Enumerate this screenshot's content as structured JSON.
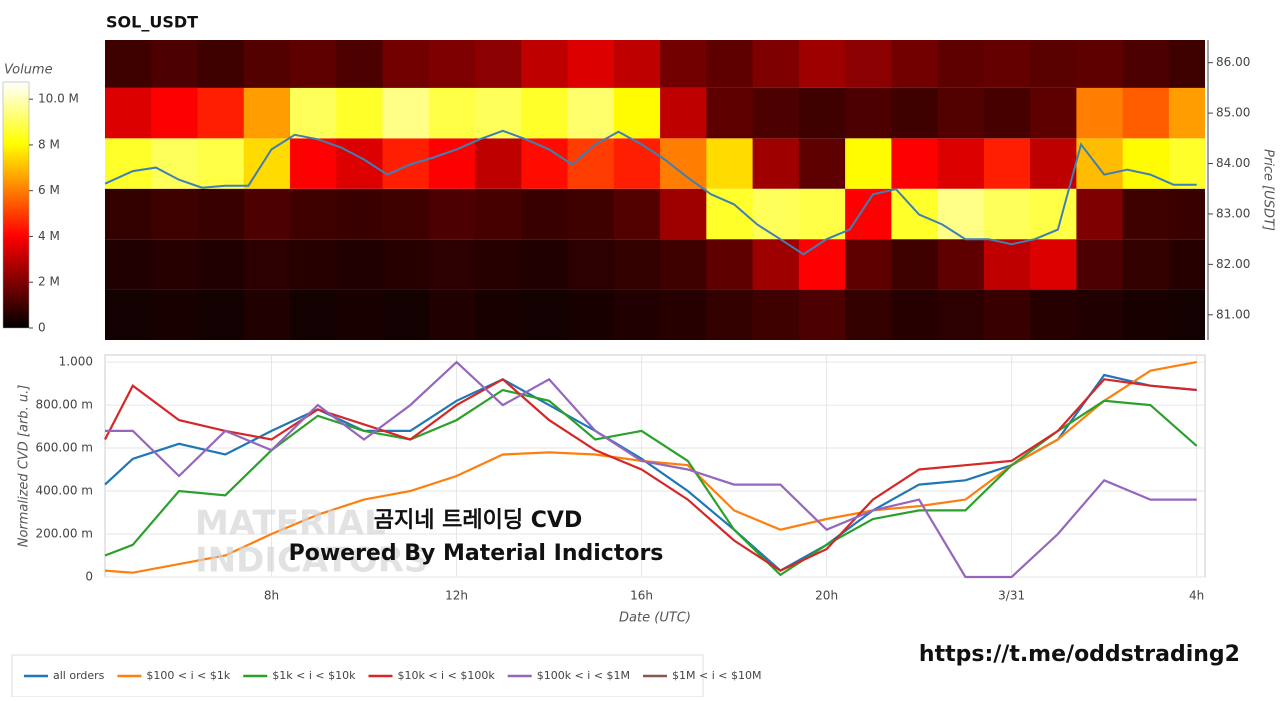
{
  "url": "https://t.me/oddstrading2",
  "overlay": {
    "line1": "곰지네 트레이딩 CVD",
    "line2": "Powered By Material Indictors",
    "watermark": [
      "MATERIAL",
      "INDICATORS"
    ]
  },
  "chart_data": [
    {
      "type": "heatmap",
      "title": "SOL_USDT",
      "ylabel": "Price [USDT]",
      "colorscale": "hot",
      "xlim": [
        4.4,
        28.18
      ],
      "ylim": [
        80.5,
        86.45
      ],
      "yticks": [
        {
          "value": 81,
          "label": "81.00"
        },
        {
          "value": 82,
          "label": "82.00"
        },
        {
          "value": 83,
          "label": "83.00"
        },
        {
          "value": 84,
          "label": "84.00"
        },
        {
          "value": 85,
          "label": "85.00"
        },
        {
          "value": 86,
          "label": "86.00"
        }
      ],
      "x": [
        4.4,
        5.4,
        6.4,
        7.4,
        8.4,
        9.4,
        10.4,
        11.4,
        12.4,
        13.4,
        14.4,
        15.4,
        16.4,
        17.4,
        18.4,
        19.4,
        20.4,
        21.4,
        22.4,
        23.4,
        24.4,
        25.4,
        26.4,
        27.4
      ],
      "y_bins": [
        80.5,
        81.5,
        82.5,
        83.5,
        84.5,
        85.5,
        86.5
      ],
      "z": [
        [
          0.3,
          0.4,
          0.3,
          0.5,
          0.3,
          0.4,
          0.3,
          0.5,
          0.4,
          0.3,
          0.4,
          0.5,
          0.6,
          0.8,
          1.0,
          1.2,
          0.8,
          0.6,
          0.7,
          0.9,
          0.6,
          0.5,
          0.4,
          0.3
        ],
        [
          0.5,
          0.6,
          0.5,
          0.7,
          0.6,
          0.5,
          0.6,
          0.7,
          0.6,
          0.5,
          0.7,
          0.8,
          1.0,
          1.5,
          2.5,
          4.0,
          1.5,
          1.0,
          1.5,
          3.0,
          3.5,
          1.2,
          0.8,
          0.6
        ],
        [
          0.8,
          1.0,
          0.9,
          1.2,
          1.0,
          0.9,
          1.0,
          1.2,
          1.1,
          0.9,
          1.0,
          1.3,
          2.5,
          8.5,
          9.0,
          8.8,
          4.0,
          8.5,
          9.5,
          9.0,
          8.8,
          2.0,
          1.0,
          0.9
        ],
        [
          8.5,
          9.0,
          8.8,
          7.5,
          4.0,
          3.5,
          4.5,
          4.0,
          3.0,
          4.2,
          5.0,
          4.5,
          6.0,
          7.5,
          2.5,
          1.5,
          8.0,
          4.0,
          3.5,
          4.5,
          3.0,
          7.0,
          8.0,
          8.5
        ],
        [
          3.5,
          4.0,
          4.5,
          6.5,
          9.0,
          8.5,
          9.5,
          8.8,
          9.0,
          8.5,
          9.2,
          8.0,
          3.0,
          1.5,
          1.2,
          1.0,
          1.2,
          1.0,
          1.3,
          1.1,
          1.5,
          6.0,
          5.5,
          6.5
        ],
        [
          1.0,
          1.2,
          1.0,
          1.3,
          1.5,
          1.2,
          1.8,
          2.0,
          2.2,
          3.0,
          3.5,
          3.0,
          1.8,
          1.5,
          2.0,
          2.5,
          2.2,
          1.8,
          1.5,
          1.6,
          1.4,
          1.5,
          1.2,
          1.0
        ]
      ],
      "colorbar": {
        "title": "Volume",
        "zlim": [
          0,
          10.75
        ],
        "ticks": [
          0,
          {
            "value": 2,
            "label": "2 M"
          },
          {
            "value": 4,
            "label": "4 M"
          },
          {
            "value": 6,
            "label": "6 M"
          },
          {
            "value": 8,
            "label": "8 M"
          },
          {
            "value": 10,
            "label": "10.0 M"
          }
        ]
      },
      "line": {
        "color": "#3f7fb5",
        "x": [
          4.4,
          5,
          5.5,
          6,
          6.5,
          7,
          7.5,
          8,
          8.5,
          9,
          9.5,
          10,
          10.5,
          11,
          11.5,
          12,
          12.5,
          13,
          13.5,
          14,
          14.5,
          15,
          15.5,
          16,
          16.5,
          17,
          17.5,
          18,
          18.5,
          19,
          19.5,
          20,
          20.5,
          21,
          21.5,
          22,
          22.5,
          23,
          23.5,
          24,
          24.5,
          25,
          25.5,
          26,
          26.5,
          27,
          27.5,
          28
        ],
        "values": [
          83.6,
          83.85,
          83.92,
          83.68,
          83.52,
          83.56,
          83.56,
          84.28,
          84.57,
          84.48,
          84.32,
          84.08,
          83.78,
          83.98,
          84.12,
          84.28,
          84.48,
          84.65,
          84.48,
          84.28,
          83.98,
          84.38,
          84.63,
          84.38,
          84.08,
          83.72,
          83.39,
          83.19,
          82.79,
          82.5,
          82.2,
          82.5,
          82.69,
          83.39,
          83.49,
          82.99,
          82.79,
          82.5,
          82.5,
          82.4,
          82.5,
          82.69,
          84.38,
          83.78,
          83.88,
          83.78,
          83.58,
          83.58
        ]
      }
    },
    {
      "type": "line",
      "xlabel": "Date (UTC)",
      "ylabel": "Normalized CVD [arb. u.]",
      "grid": true,
      "legend": "bottom-left",
      "xlim": [
        4.4,
        28.18
      ],
      "ylim": [
        0,
        1.033
      ],
      "xticks": [
        {
          "value": 8,
          "label": "8h"
        },
        {
          "value": 12,
          "label": "12h"
        },
        {
          "value": 16,
          "label": "16h"
        },
        {
          "value": 20,
          "label": "20h"
        },
        {
          "value": 24,
          "label": "3/31"
        },
        {
          "value": 28,
          "label": "4h"
        }
      ],
      "yticks": [
        0,
        {
          "value": 0.2,
          "label": "200.00 m"
        },
        {
          "value": 0.4,
          "label": "400.00 m"
        },
        {
          "value": 0.6,
          "label": "600.00 m"
        },
        {
          "value": 0.8,
          "label": "800.00 m"
        },
        {
          "value": 1,
          "label": "1.000"
        }
      ],
      "x": [
        4.4,
        5,
        6,
        7,
        8,
        9,
        10,
        11,
        12,
        13,
        14,
        15,
        16,
        17,
        18,
        19,
        20,
        21,
        22,
        23,
        24,
        25,
        26,
        27,
        28
      ],
      "series": [
        {
          "name": "all orders",
          "color": "#1f77b4",
          "values": [
            0.43,
            0.55,
            0.62,
            0.57,
            0.68,
            0.78,
            0.68,
            0.68,
            0.82,
            0.92,
            0.8,
            0.68,
            0.55,
            0.4,
            0.22,
            0.03,
            0.15,
            0.31,
            0.43,
            0.45,
            0.52,
            0.64,
            0.94,
            0.89,
            0.87
          ]
        },
        {
          "name": "$100 < i < $1k",
          "color": "#ff7f0e",
          "values": [
            0.03,
            0.02,
            0.06,
            0.1,
            0.2,
            0.29,
            0.36,
            0.4,
            0.47,
            0.57,
            0.58,
            0.57,
            0.54,
            0.52,
            0.31,
            0.22,
            0.27,
            0.31,
            0.33,
            0.36,
            0.52,
            0.64,
            0.82,
            0.96,
            1.0
          ]
        },
        {
          "name": "$1k < i < $10k",
          "color": "#2ca02c",
          "values": [
            0.1,
            0.15,
            0.4,
            0.38,
            0.59,
            0.75,
            0.68,
            0.64,
            0.73,
            0.87,
            0.82,
            0.64,
            0.68,
            0.54,
            0.22,
            0.01,
            0.15,
            0.27,
            0.31,
            0.31,
            0.52,
            0.68,
            0.82,
            0.8,
            0.61
          ]
        },
        {
          "name": "$10k < i < $100k",
          "color": "#d62728",
          "values": [
            0.64,
            0.89,
            0.73,
            0.68,
            0.64,
            0.78,
            0.71,
            0.64,
            0.8,
            0.92,
            0.73,
            0.59,
            0.5,
            0.36,
            0.17,
            0.03,
            0.13,
            0.36,
            0.5,
            0.52,
            0.54,
            0.68,
            0.92,
            0.89,
            0.87
          ]
        },
        {
          "name": "$100k < i < $1M",
          "color": "#9467bd",
          "values": [
            0.68,
            0.68,
            0.47,
            0.68,
            0.59,
            0.8,
            0.64,
            0.8,
            1.0,
            0.8,
            0.92,
            0.68,
            0.54,
            0.5,
            0.43,
            0.43,
            0.22,
            0.31,
            0.36,
            0,
            0,
            0.2,
            0.45,
            0.36,
            0.36
          ]
        },
        {
          "name": "$1M < i < $10M",
          "color": "#8c564b",
          "values": [
            null,
            null,
            null,
            null,
            null,
            null,
            null,
            null,
            null,
            null,
            null,
            null,
            null,
            null,
            null,
            null,
            null,
            null,
            null,
            null,
            null,
            null,
            null,
            null,
            null
          ]
        }
      ]
    }
  ]
}
